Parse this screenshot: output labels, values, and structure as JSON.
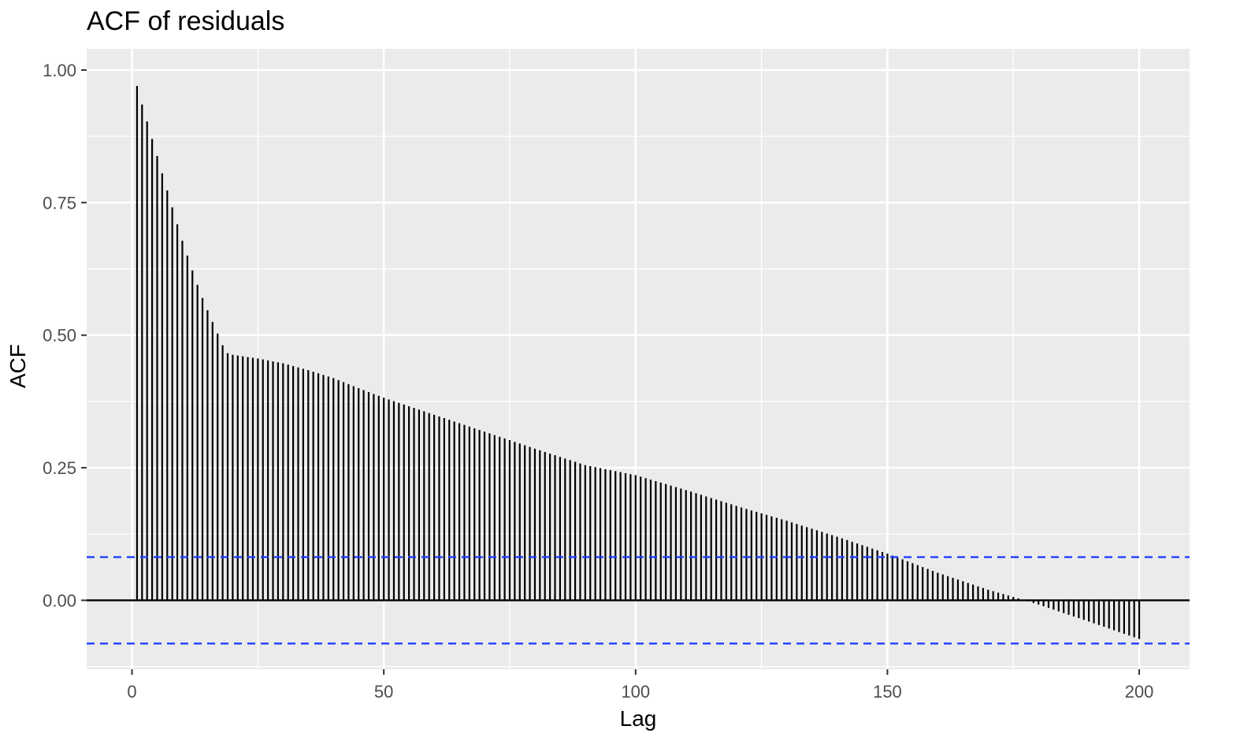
{
  "chart_data": {
    "type": "bar",
    "title": "ACF of residuals",
    "xlabel": "Lag",
    "ylabel": "ACF",
    "xlim": [
      -9,
      210
    ],
    "ylim": [
      -0.13,
      1.04
    ],
    "grid": true,
    "x_ticks": [
      0,
      50,
      100,
      150,
      200
    ],
    "x_tick_labels": [
      "0",
      "50",
      "100",
      "150",
      "200"
    ],
    "y_ticks": [
      0,
      0.25,
      0.5,
      0.75,
      1.0
    ],
    "y_tick_labels": [
      "0.00",
      "0.25",
      "0.50",
      "0.75",
      "1.00"
    ],
    "confidence_bound": 0.0815,
    "colors": {
      "panel_background": "#ebebeb",
      "grid": "#ffffff",
      "bars": "#000000",
      "confidence_lines": "#1f3fff"
    },
    "anchors": [
      [
        1,
        0.97
      ],
      [
        2,
        0.935
      ],
      [
        3,
        0.903
      ],
      [
        4,
        0.87
      ],
      [
        5,
        0.838
      ],
      [
        6,
        0.805
      ],
      [
        7,
        0.773
      ],
      [
        8,
        0.741
      ],
      [
        9,
        0.709
      ],
      [
        10,
        0.678
      ],
      [
        11,
        0.65
      ],
      [
        12,
        0.622
      ],
      [
        13,
        0.595
      ],
      [
        14,
        0.57
      ],
      [
        15,
        0.547
      ],
      [
        16,
        0.525
      ],
      [
        17,
        0.503
      ],
      [
        18,
        0.481
      ],
      [
        19,
        0.466
      ],
      [
        20,
        0.463
      ],
      [
        25,
        0.456
      ],
      [
        30,
        0.447
      ],
      [
        35,
        0.434
      ],
      [
        40,
        0.419
      ],
      [
        45,
        0.4
      ],
      [
        50,
        0.382
      ],
      [
        60,
        0.35
      ],
      [
        70,
        0.318
      ],
      [
        80,
        0.286
      ],
      [
        90,
        0.255
      ],
      [
        100,
        0.236
      ],
      [
        110,
        0.208
      ],
      [
        120,
        0.178
      ],
      [
        130,
        0.15
      ],
      [
        140,
        0.12
      ],
      [
        150,
        0.088
      ],
      [
        160,
        0.052
      ],
      [
        170,
        0.02
      ],
      [
        177,
        0.001
      ],
      [
        180,
        -0.008
      ],
      [
        190,
        -0.04
      ],
      [
        200,
        -0.073
      ]
    ]
  }
}
